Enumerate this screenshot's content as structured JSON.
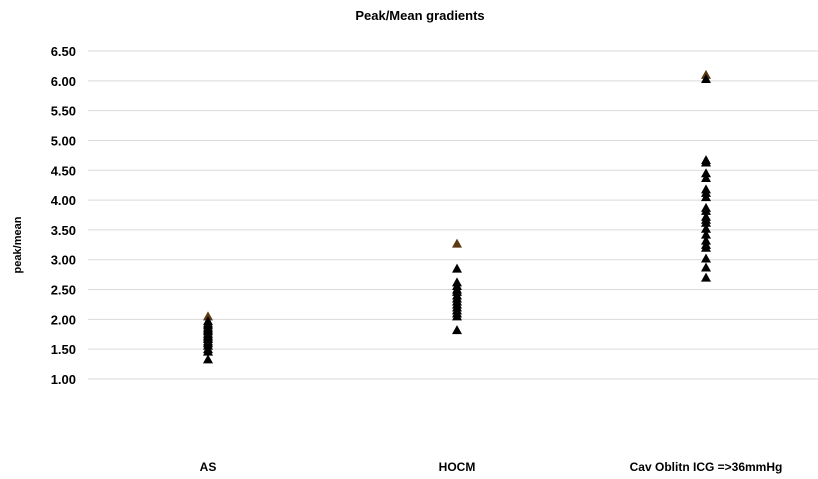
{
  "chart_data": {
    "type": "scatter",
    "title": "Peak/Mean gradients",
    "xlabel": "",
    "ylabel": "peak/mean",
    "ylim": [
      1.0,
      6.5
    ],
    "y_ticks": [
      "1.00",
      "1.50",
      "2.00",
      "2.50",
      "3.00",
      "3.50",
      "4.00",
      "4.50",
      "5.00",
      "5.50",
      "6.00",
      "6.50"
    ],
    "y_tick_values": [
      1.0,
      1.5,
      2.0,
      2.5,
      3.0,
      3.5,
      4.0,
      4.5,
      5.0,
      5.5,
      6.0,
      6.5
    ],
    "grid": true,
    "marker": "triangle",
    "marker_color": "#000000",
    "highlight_color": "#5a3a10",
    "categories": [
      "AS",
      "HOCM",
      "Cav Oblitn ICG =>36mmHg"
    ],
    "series": [
      {
        "category": "AS",
        "values": [
          2.05,
          1.97,
          1.93,
          1.9,
          1.86,
          1.83,
          1.8,
          1.76,
          1.73,
          1.7,
          1.67,
          1.63,
          1.6,
          1.56,
          1.5,
          1.46,
          1.33
        ],
        "highlight_index": 0
      },
      {
        "category": "HOCM",
        "values": [
          3.27,
          2.85,
          2.62,
          2.56,
          2.5,
          2.46,
          2.4,
          2.35,
          2.3,
          2.25,
          2.2,
          2.15,
          2.1,
          2.05,
          1.82
        ],
        "highlight_index": 0
      },
      {
        "category": "Cav Oblitn ICG =>36mmHg",
        "values": [
          6.1,
          6.03,
          4.67,
          4.63,
          4.45,
          4.37,
          4.18,
          4.12,
          4.05,
          3.87,
          3.82,
          3.72,
          3.67,
          3.62,
          3.52,
          3.42,
          3.32,
          3.25,
          3.2,
          3.02,
          2.87,
          2.7
        ],
        "highlight_index": 0
      }
    ]
  }
}
